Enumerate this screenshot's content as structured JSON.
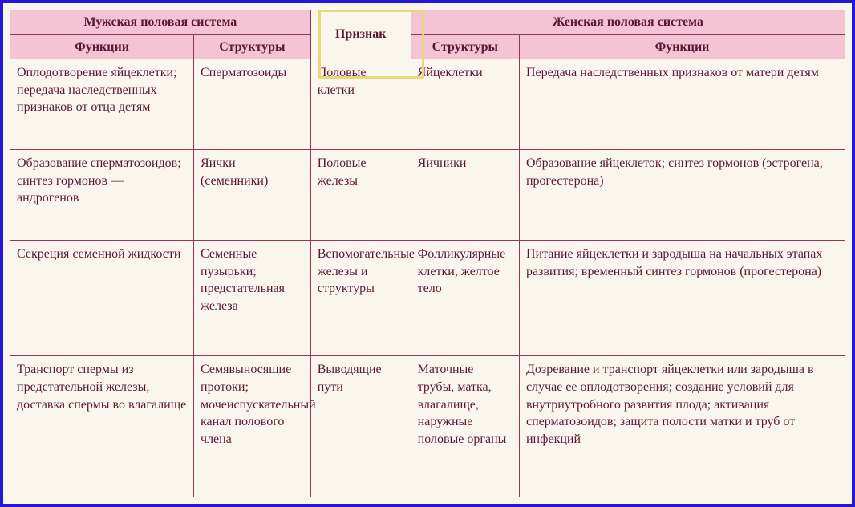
{
  "headers": {
    "male_group": "Мужская половая система",
    "female_group": "Женская половая система",
    "sign": "Признак",
    "functions": "Функции",
    "structures": "Структуры"
  },
  "rows": [
    {
      "mfun": "Оплодотворение яйцеклетки; передача наследственных признаков от отца детям",
      "mstr": "Сперматозоиды",
      "sign": "Половые клетки",
      "fstr": "Яйцеклетки",
      "ffun": "Передача наследственных признаков от матери детям"
    },
    {
      "mfun": "Образование сперматозоидов; синтез гормонов — андрогенов",
      "mstr": "Яички (семенники)",
      "sign": "Половые железы",
      "fstr": "Яичники",
      "ffun": "Образование яйцеклеток; синтез гормонов (эстрогена, прогестерона)"
    },
    {
      "mfun": "Секреция семенной жидкости",
      "mstr": "Семенные пузырьки; предстательная железа",
      "sign": "Вспомогательные железы и структуры",
      "fstr": "Фолликулярные клетки, желтое тело",
      "ffun": "Питание яйцеклетки и зародыша на начальных этапах развития; временный синтез гормонов (прогестерона)"
    },
    {
      "mfun": "Транспорт спермы из предстательной железы, доставка спермы во влагалище",
      "mstr": "Семявыносящие протоки; мочеиспускательный канал полового члена",
      "sign": "Выводящие пути",
      "fstr": "Маточные трубы, матка, влагалище, наружные половые органы",
      "ffun": "Дозревание и транспорт яйцеклетки или зародыша в случае ее оплодотворения; создание условий для внутриутробного развития плода; активация сперматозоидов; защита полости матки и труб от инфекций"
    }
  ],
  "style": {
    "row_heights": [
      "100px",
      "92px",
      "120px",
      "auto"
    ]
  }
}
